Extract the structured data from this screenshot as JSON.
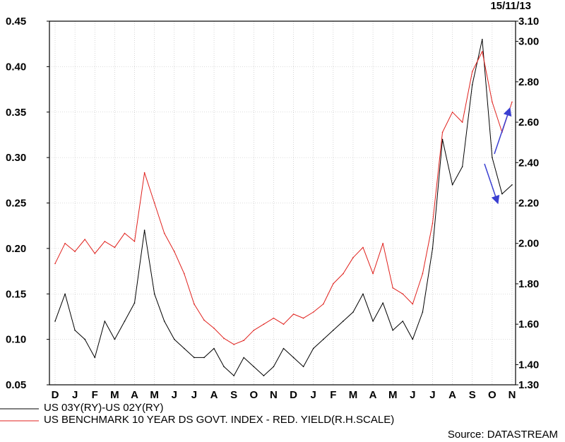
{
  "chart_data": {
    "type": "line",
    "date": "15/11/13",
    "x_labels": [
      "D",
      "J",
      "F",
      "M",
      "A",
      "M",
      "J",
      "J",
      "A",
      "S",
      "O",
      "N",
      "D",
      "J",
      "F",
      "M",
      "A",
      "M",
      "J",
      "J",
      "A",
      "S",
      "O",
      "N"
    ],
    "grid": true,
    "left_axis": {
      "ticks": [
        "0.05",
        "0.10",
        "0.15",
        "0.20",
        "0.25",
        "0.30",
        "0.35",
        "0.40",
        "0.45"
      ],
      "ylim": [
        0.05,
        0.45
      ]
    },
    "right_axis": {
      "ticks": [
        "1.30",
        "1.40",
        "1.60",
        "1.80",
        "2.00",
        "2.20",
        "2.40",
        "2.60",
        "2.80",
        "3.00",
        "3.10"
      ],
      "ylim": [
        1.3,
        3.1
      ]
    },
    "series": [
      {
        "name": "US 03Y(RY)-US 02Y(RY)",
        "axis": "left",
        "color": "#000000",
        "x": [
          0,
          0.5,
          1,
          1.5,
          2,
          2.5,
          3,
          3.5,
          4,
          4.5,
          5,
          5.5,
          6,
          6.5,
          7,
          7.5,
          8,
          8.5,
          9,
          9.5,
          10,
          10.5,
          11,
          11.5,
          12,
          12.5,
          13,
          13.5,
          14,
          14.5,
          15,
          15.5,
          16,
          16.5,
          17,
          17.5,
          18,
          18.5,
          19,
          19.5,
          20,
          20.5,
          21,
          21.5,
          22,
          22.5,
          23
        ],
        "values": [
          0.12,
          0.15,
          0.11,
          0.1,
          0.08,
          0.12,
          0.1,
          0.12,
          0.14,
          0.22,
          0.15,
          0.12,
          0.1,
          0.09,
          0.08,
          0.08,
          0.09,
          0.07,
          0.06,
          0.08,
          0.07,
          0.06,
          0.07,
          0.09,
          0.08,
          0.07,
          0.09,
          0.1,
          0.11,
          0.12,
          0.13,
          0.15,
          0.12,
          0.14,
          0.11,
          0.12,
          0.1,
          0.13,
          0.2,
          0.32,
          0.27,
          0.29,
          0.38,
          0.43,
          0.3,
          0.26,
          0.27
        ]
      },
      {
        "name": "US BENCHMARK 10 YEAR DS GOVT. INDEX - RED. YIELD(R.H.SCALE)",
        "axis": "right",
        "color": "#e0201c",
        "x": [
          0,
          0.5,
          1,
          1.5,
          2,
          2.5,
          3,
          3.5,
          4,
          4.5,
          5,
          5.5,
          6,
          6.5,
          7,
          7.5,
          8,
          8.5,
          9,
          9.5,
          10,
          10.5,
          11,
          11.5,
          12,
          12.5,
          13,
          13.5,
          14,
          14.5,
          15,
          15.5,
          16,
          16.5,
          17,
          17.5,
          18,
          18.5,
          19,
          19.5,
          20,
          20.5,
          21,
          21.5,
          22,
          22.5,
          23
        ],
        "values": [
          1.9,
          2.0,
          1.96,
          2.02,
          1.95,
          2.01,
          1.98,
          2.05,
          2.01,
          2.35,
          2.2,
          2.05,
          1.96,
          1.85,
          1.7,
          1.62,
          1.58,
          1.53,
          1.5,
          1.52,
          1.57,
          1.6,
          1.63,
          1.6,
          1.65,
          1.63,
          1.66,
          1.7,
          1.8,
          1.85,
          1.93,
          1.98,
          1.85,
          2.0,
          1.78,
          1.75,
          1.7,
          1.85,
          2.1,
          2.55,
          2.65,
          2.6,
          2.85,
          2.95,
          2.7,
          2.55,
          2.7
        ]
      }
    ],
    "annotations": [
      "blue arrow on red series (rising, Oct-Nov)",
      "blue arrow on black series (falling, Oct-Nov)"
    ],
    "legend": {
      "placement": "bottom-left",
      "entries": [
        "US 03Y(RY)-US 02Y(RY)",
        "US BENCHMARK 10 YEAR DS GOVT. INDEX - RED. YIELD(R.H.SCALE)"
      ]
    },
    "source": "Source: DATASTREAM"
  }
}
